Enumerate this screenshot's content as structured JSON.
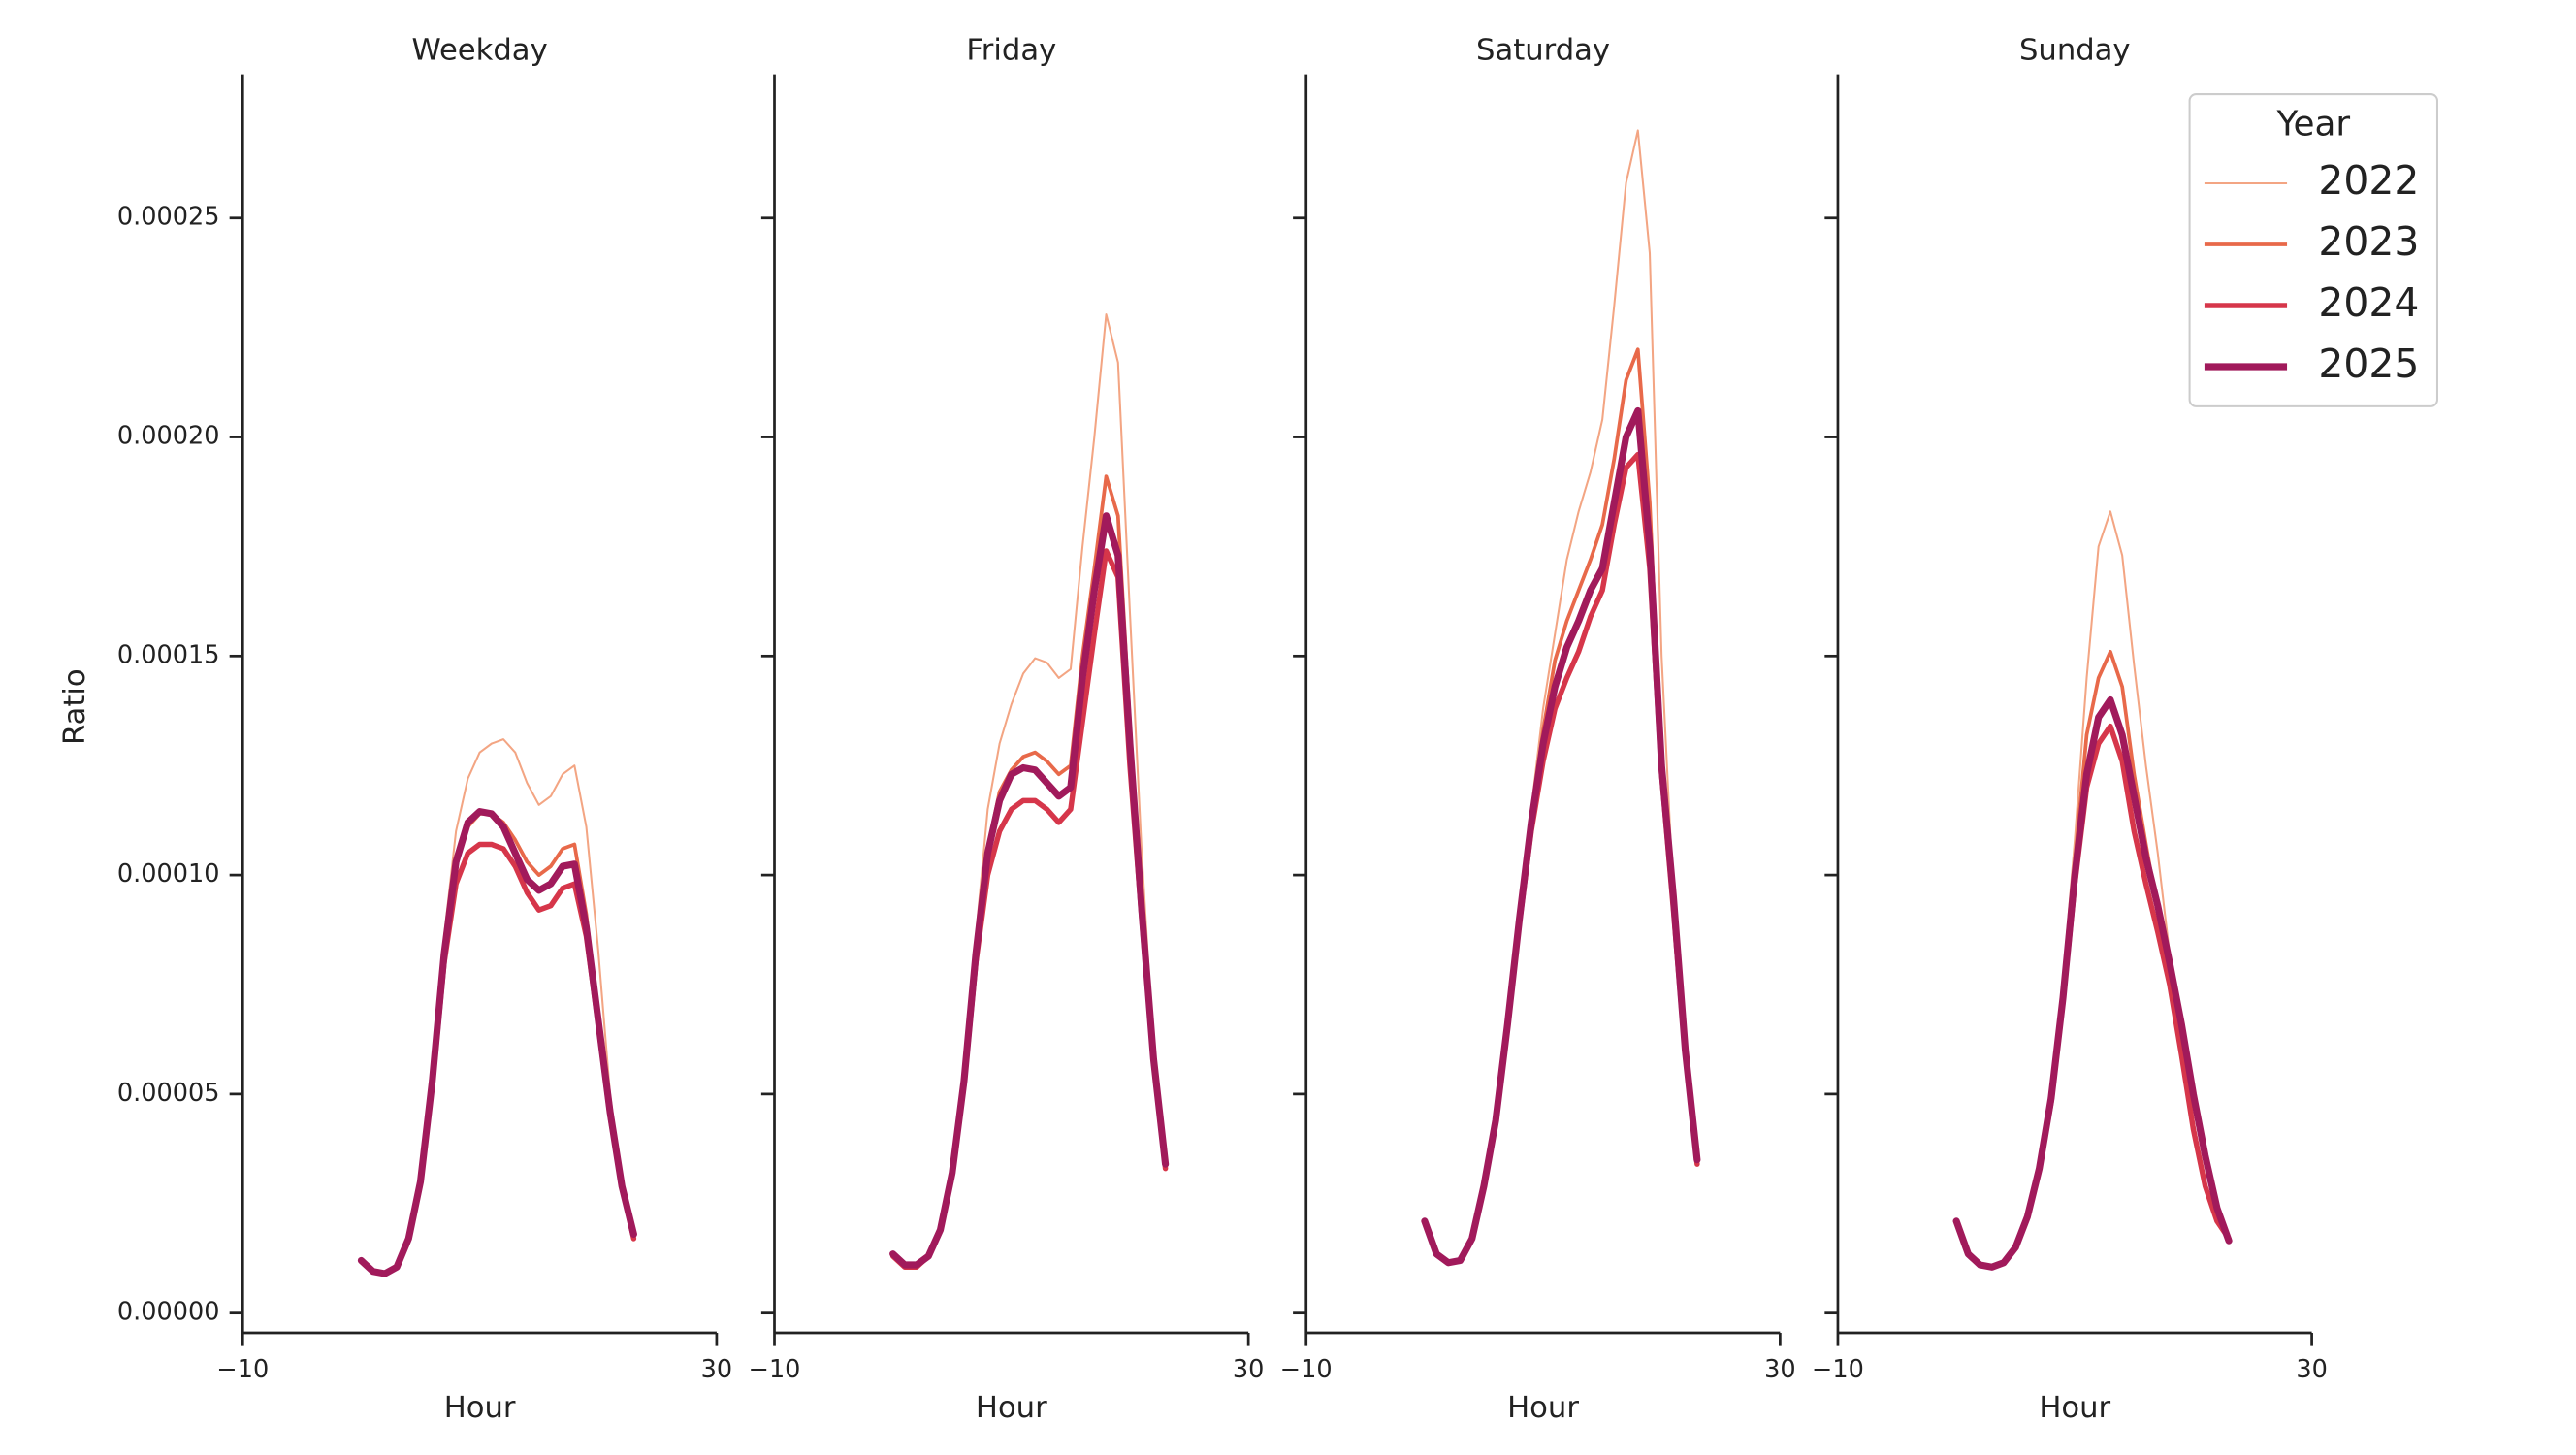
{
  "chart_data": [
    {
      "type": "line",
      "title": "Weekday",
      "xlabel": "Hour",
      "ylabel": "Ratio",
      "x": [
        0,
        1,
        2,
        3,
        4,
        5,
        6,
        7,
        8,
        9,
        10,
        11,
        12,
        13,
        14,
        15,
        16,
        17,
        18,
        19,
        20,
        21,
        22,
        23
      ],
      "xlim": [
        -10,
        30
      ],
      "xticks": [
        {
          "value": -10,
          "label": "−10"
        },
        30
      ],
      "ylim": [
        -4.5e-06,
        0.0002828
      ],
      "yticks": [
        {
          "value": 0,
          "label": "0.00000"
        },
        {
          "value": 5e-05,
          "label": "0.00005"
        },
        {
          "value": 0.0001,
          "label": "0.00010"
        },
        {
          "value": 0.00015,
          "label": "0.00015"
        },
        {
          "value": 0.0002,
          "label": "0.00020"
        },
        {
          "value": 0.00025,
          "label": "0.00025"
        }
      ],
      "series": [
        {
          "color": "#f3a583",
          "linewidth": 1.2,
          "values": [
            1.2e-05,
            9.5e-06,
            9e-06,
            1.05e-05,
            1.7e-05,
            3e-05,
            5.4e-05,
            8.6e-05,
            0.00011,
            0.000122,
            0.000128,
            0.00013,
            0.000131,
            0.000128,
            0.000121,
            0.000116,
            0.000118,
            0.000123,
            0.000125,
            0.000111,
            8.3e-05,
            5e-05,
            3e-05,
            1.8e-05
          ]
        },
        {
          "color": "#e8694a",
          "linewidth": 2.2,
          "values": [
            1.2e-05,
            9.5e-06,
            9e-06,
            1.05e-05,
            1.7e-05,
            3e-05,
            5.3e-05,
            8.2e-05,
            0.000102,
            0.000111,
            0.000114,
            0.000114,
            0.000112,
            0.000108,
            0.000103,
            0.0001,
            0.000102,
            0.000106,
            0.000107,
            9.1e-05,
            6.8e-05,
            4.6e-05,
            2.9e-05,
            1.8e-05
          ]
        },
        {
          "color": "#d6364a",
          "linewidth": 3.2,
          "values": [
            1.2e-05,
            9.5e-06,
            9e-06,
            1.05e-05,
            1.7e-05,
            3e-05,
            5.2e-05,
            8e-05,
            9.8e-05,
            0.000105,
            0.000107,
            0.000107,
            0.000106,
            0.000102,
            9.6e-05,
            9.2e-05,
            9.3e-05,
            9.7e-05,
            9.8e-05,
            8.6e-05,
            6.6e-05,
            4.5e-05,
            2.9e-05,
            1.7e-05
          ]
        },
        {
          "color": "#a11a5b",
          "linewidth": 4.2,
          "values": [
            1.2e-05,
            9.5e-06,
            9e-06,
            1.05e-05,
            1.7e-05,
            3e-05,
            5.3e-05,
            8.2e-05,
            0.000103,
            0.000112,
            0.0001145,
            0.000114,
            0.000111,
            0.000105,
            9.9e-05,
            9.65e-05,
            9.8e-05,
            0.000102,
            0.0001025,
            8.8e-05,
            6.7e-05,
            4.6e-05,
            2.9e-05,
            1.8e-05
          ]
        }
      ]
    },
    {
      "type": "line",
      "title": "Friday",
      "xlabel": "Hour",
      "x": [
        0,
        1,
        2,
        3,
        4,
        5,
        6,
        7,
        8,
        9,
        10,
        11,
        12,
        13,
        14,
        15,
        16,
        17,
        18,
        19,
        20,
        21,
        22,
        23
      ],
      "xlim": [
        -10,
        30
      ],
      "xticks": [
        {
          "value": -10,
          "label": "−10"
        },
        30
      ],
      "ylim": [
        -4.5e-06,
        0.0002828
      ],
      "yticks": [
        0,
        5e-05,
        0.0001,
        0.00015,
        0.0002,
        0.00025
      ],
      "series": [
        {
          "color": "#f3a583",
          "linewidth": 1.2,
          "values": [
            1.3e-05,
            1.05e-05,
            1.05e-05,
            1.3e-05,
            1.9e-05,
            3.2e-05,
            5.4e-05,
            8.6e-05,
            0.000115,
            0.00013,
            0.000139,
            0.000146,
            0.0001495,
            0.0001485,
            0.000145,
            0.000147,
            0.000175,
            0.0002,
            0.000228,
            0.000217,
            0.00016,
            0.000105,
            6e-05,
            3.3e-05
          ]
        },
        {
          "color": "#e8694a",
          "linewidth": 2.2,
          "values": [
            1.3e-05,
            1.05e-05,
            1.05e-05,
            1.3e-05,
            1.9e-05,
            3.2e-05,
            5.3e-05,
            8.2e-05,
            0.000106,
            0.000119,
            0.000124,
            0.000127,
            0.000128,
            0.000126,
            0.000123,
            0.000125,
            0.00015,
            0.00017,
            0.000191,
            0.000182,
            0.000135,
            9.3e-05,
            5.9e-05,
            3.3e-05
          ]
        },
        {
          "color": "#d6364a",
          "linewidth": 3.2,
          "values": [
            1.3e-05,
            1.05e-05,
            1.05e-05,
            1.3e-05,
            1.9e-05,
            3.2e-05,
            5.2e-05,
            8e-05,
            0.0001,
            0.00011,
            0.000115,
            0.000117,
            0.000117,
            0.000115,
            0.000112,
            0.000115,
            0.000135,
            0.000155,
            0.000174,
            0.000168,
            0.000125,
            9e-05,
            5.7e-05,
            3.3e-05
          ]
        },
        {
          "color": "#a11a5b",
          "linewidth": 4.2,
          "values": [
            1.35e-05,
            1.1e-05,
            1.1e-05,
            1.3e-05,
            1.9e-05,
            3.2e-05,
            5.3e-05,
            8.2e-05,
            0.000105,
            0.000117,
            0.000123,
            0.0001245,
            0.000124,
            0.000121,
            0.000118,
            0.00012,
            0.000145,
            0.000165,
            0.000182,
            0.000173,
            0.00013,
            9.2e-05,
            5.8e-05,
            3.4e-05
          ]
        }
      ]
    },
    {
      "type": "line",
      "title": "Saturday",
      "xlabel": "Hour",
      "x": [
        0,
        1,
        2,
        3,
        4,
        5,
        6,
        7,
        8,
        9,
        10,
        11,
        12,
        13,
        14,
        15,
        16,
        17,
        18,
        19,
        20,
        21,
        22,
        23
      ],
      "xlim": [
        -10,
        30
      ],
      "xticks": [
        {
          "value": -10,
          "label": "−10"
        },
        30
      ],
      "ylim": [
        -4.5e-06,
        0.0002828
      ],
      "yticks": [
        0,
        5e-05,
        0.0001,
        0.00015,
        0.0002,
        0.00025
      ],
      "series": [
        {
          "color": "#f3a583",
          "linewidth": 1.2,
          "values": [
            2.1e-05,
            1.35e-05,
            1.15e-05,
            1.2e-05,
            1.7e-05,
            2.9e-05,
            4.4e-05,
            6.7e-05,
            9.2e-05,
            0.000115,
            0.000138,
            0.000155,
            0.000172,
            0.000183,
            0.000192,
            0.000204,
            0.00023,
            0.000258,
            0.00027,
            0.000242,
            0.00015,
            9.5e-05,
            6e-05,
            3.4e-05
          ]
        },
        {
          "color": "#e8694a",
          "linewidth": 2.2,
          "values": [
            2.1e-05,
            1.35e-05,
            1.15e-05,
            1.2e-05,
            1.7e-05,
            2.9e-05,
            4.4e-05,
            6.6e-05,
            9e-05,
            0.000113,
            0.000133,
            0.000149,
            0.000158,
            0.000165,
            0.000172,
            0.00018,
            0.000195,
            0.000213,
            0.00022,
            0.000185,
            0.000125,
            9.3e-05,
            5.9e-05,
            3.4e-05
          ]
        },
        {
          "color": "#d6364a",
          "linewidth": 3.2,
          "values": [
            2.1e-05,
            1.35e-05,
            1.15e-05,
            1.2e-05,
            1.7e-05,
            2.9e-05,
            4.4e-05,
            6.6e-05,
            8.9e-05,
            0.00011,
            0.000126,
            0.000138,
            0.000145,
            0.000151,
            0.000159,
            0.000165,
            0.00018,
            0.000193,
            0.000196,
            0.00017,
            0.000123,
            9.2e-05,
            5.9e-05,
            3.4e-05
          ]
        },
        {
          "color": "#a11a5b",
          "linewidth": 4.2,
          "values": [
            2.1e-05,
            1.35e-05,
            1.15e-05,
            1.2e-05,
            1.7e-05,
            2.9e-05,
            4.4e-05,
            6.6e-05,
            9e-05,
            0.000112,
            0.00013,
            0.000143,
            0.000152,
            0.000158,
            0.000165,
            0.00017,
            0.000185,
            0.0002,
            0.000206,
            0.000175,
            0.000125,
            9.5e-05,
            6e-05,
            3.5e-05
          ]
        }
      ]
    },
    {
      "type": "line",
      "title": "Sunday",
      "xlabel": "Hour",
      "x": [
        0,
        1,
        2,
        3,
        4,
        5,
        6,
        7,
        8,
        9,
        10,
        11,
        12,
        13,
        14,
        15,
        16,
        17,
        18,
        19,
        20,
        21,
        22,
        23
      ],
      "xlim": [
        -10,
        30
      ],
      "xticks": [
        {
          "value": -10,
          "label": "−10"
        },
        30
      ],
      "ylim": [
        -4.5e-06,
        0.0002828
      ],
      "yticks": [
        0,
        5e-05,
        0.0001,
        0.00015,
        0.0002,
        0.00025
      ],
      "legend": {
        "title": "Year",
        "loc": "upper right"
      },
      "series": [
        {
          "name": "2022",
          "color": "#f3a583",
          "linewidth": 1.2,
          "values": [
            2.1e-05,
            1.35e-05,
            1.1e-05,
            1.05e-05,
            1.15e-05,
            1.5e-05,
            2.2e-05,
            3.3e-05,
            5e-05,
            7.6e-05,
            0.000108,
            0.000145,
            0.000175,
            0.000183,
            0.000173,
            0.000148,
            0.000125,
            0.000105,
            8.2e-05,
            6.3e-05,
            4.3e-05,
            3e-05,
            2.2e-05,
            1.7e-05
          ]
        },
        {
          "name": "2023",
          "color": "#e8694a",
          "linewidth": 2.2,
          "values": [
            2.1e-05,
            1.35e-05,
            1.1e-05,
            1.05e-05,
            1.15e-05,
            1.5e-05,
            2.2e-05,
            3.3e-05,
            4.9e-05,
            7.3e-05,
            0.000103,
            0.000132,
            0.000145,
            0.000151,
            0.000143,
            0.000123,
            0.000107,
            9.2e-05,
            7.8e-05,
            6.1e-05,
            4.3e-05,
            2.9e-05,
            2.1e-05,
            1.7e-05
          ]
        },
        {
          "name": "2024",
          "color": "#d6364a",
          "linewidth": 3.2,
          "values": [
            2.1e-05,
            1.35e-05,
            1.1e-05,
            1.05e-05,
            1.15e-05,
            1.5e-05,
            2.2e-05,
            3.3e-05,
            4.8e-05,
            7.1e-05,
            9.8e-05,
            0.00012,
            0.00013,
            0.000134,
            0.000126,
            0.00011,
            9.8e-05,
            8.7e-05,
            7.5e-05,
            5.9e-05,
            4.2e-05,
            2.9e-05,
            2.1e-05,
            1.7e-05
          ]
        },
        {
          "name": "2025",
          "color": "#a11a5b",
          "linewidth": 4.2,
          "values": [
            2.1e-05,
            1.35e-05,
            1.1e-05,
            1.05e-05,
            1.15e-05,
            1.5e-05,
            2.2e-05,
            3.3e-05,
            4.9e-05,
            7.2e-05,
            0.0001,
            0.000123,
            0.000136,
            0.00014,
            0.000132,
            0.000118,
            0.000104,
            9.3e-05,
            8e-05,
            6.6e-05,
            5e-05,
            3.6e-05,
            2.4e-05,
            1.65e-05
          ]
        }
      ]
    }
  ]
}
